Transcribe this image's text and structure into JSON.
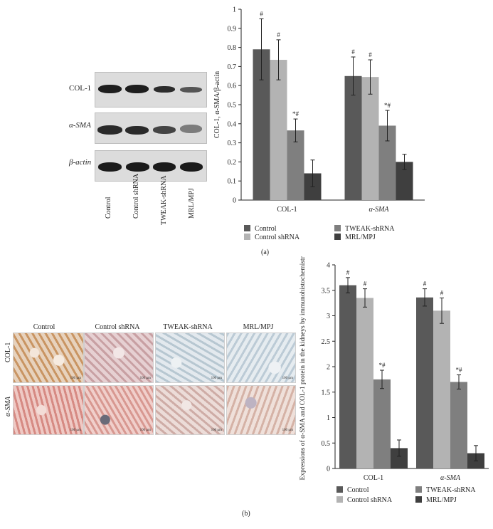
{
  "panel_a": {
    "label": "(a)",
    "blot": {
      "rows": [
        "COL-1",
        "α-SMA",
        "β-actin"
      ],
      "lanes": [
        "Control",
        "Control shRNA",
        "TWEAK-shRNA",
        "MRL/MPJ"
      ]
    }
  },
  "panel_b": {
    "label": "(b)",
    "micro": {
      "columns": [
        "Control",
        "Control shRNA",
        "TWEAK-shRNA",
        "MRL/MPJ"
      ],
      "rows": [
        "COL-1",
        "α-SMA"
      ],
      "scale_labels": [
        "100 μm",
        "100 μm",
        "100 μm",
        "100 μm",
        "100 μm",
        "100 μm",
        "100 μm",
        "100 μm"
      ]
    }
  },
  "colors": {
    "control": "#595959",
    "control_shrna": "#b3b3b3",
    "tweak_shrna": "#7f7f7f",
    "mrl_mpj": "#3f3f3f"
  },
  "chart_data": [
    {
      "type": "bar",
      "categories": [
        "COL-1",
        "α-SMA"
      ],
      "ylabel": "COL-1, α-SMA/β-actin",
      "xlabel": "",
      "ylim": [
        0,
        1
      ],
      "yticks": [
        "0",
        "0.1",
        "0.2",
        "0.3",
        "0.4",
        "0.5",
        "0.6",
        "0.7",
        "0.8",
        "0.9",
        "1"
      ],
      "legend_position": "bottom",
      "series": [
        {
          "name": "Control",
          "values": [
            0.79,
            0.65
          ],
          "errors": [
            0.16,
            0.1
          ],
          "marks": [
            "#",
            "#"
          ]
        },
        {
          "name": "Control shRNA",
          "values": [
            0.735,
            0.645
          ],
          "errors": [
            0.105,
            0.09
          ],
          "marks": [
            "#",
            "#"
          ]
        },
        {
          "name": "TWEAK-shRNA",
          "values": [
            0.365,
            0.39
          ],
          "errors": [
            0.06,
            0.08
          ],
          "marks": [
            "*#",
            "*#"
          ]
        },
        {
          "name": "MRL/MPJ",
          "values": [
            0.14,
            0.2
          ],
          "errors": [
            0.07,
            0.04
          ],
          "marks": [
            "",
            ""
          ]
        }
      ]
    },
    {
      "type": "bar",
      "categories": [
        "COL-1",
        "α-SMA"
      ],
      "ylabel": "Expressions of α-SMA and COL-1 protein in the kidneys by immunohistochemistry",
      "xlabel": "",
      "ylim": [
        0,
        4
      ],
      "yticks": [
        "0",
        "0.5",
        "1",
        "1.5",
        "2",
        "2.5",
        "3",
        "3.5",
        "4"
      ],
      "legend_position": "bottom",
      "series": [
        {
          "name": "Control",
          "values": [
            3.6,
            3.36
          ],
          "errors": [
            0.15,
            0.17
          ],
          "marks": [
            "#",
            "#"
          ]
        },
        {
          "name": "Control shRNA",
          "values": [
            3.35,
            3.1
          ],
          "errors": [
            0.18,
            0.25
          ],
          "marks": [
            "#",
            "#"
          ]
        },
        {
          "name": "TWEAK-shRNA",
          "values": [
            1.75,
            1.7
          ],
          "errors": [
            0.18,
            0.14
          ],
          "marks": [
            "*#",
            "*#"
          ]
        },
        {
          "name": "MRL/MPJ",
          "values": [
            0.4,
            0.3
          ],
          "errors": [
            0.16,
            0.15
          ],
          "marks": [
            "",
            ""
          ]
        }
      ]
    }
  ]
}
